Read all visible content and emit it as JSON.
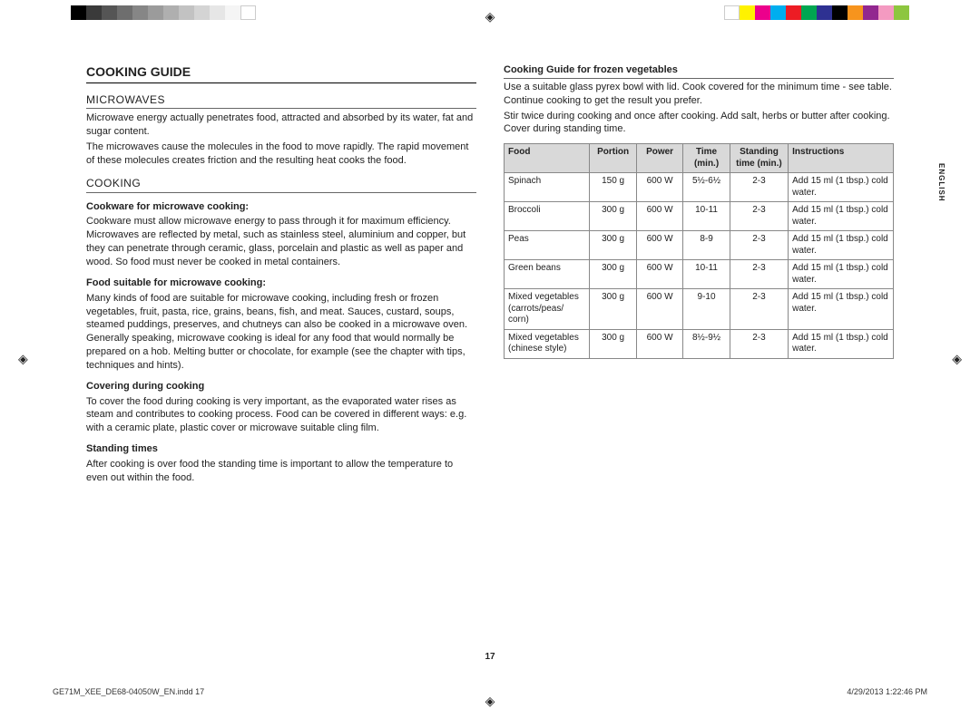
{
  "colorbars": {
    "left": [
      "#000000",
      "#3a3a3a",
      "#555555",
      "#6e6e6e",
      "#868686",
      "#9b9b9b",
      "#afafaf",
      "#c2c2c2",
      "#d4d4d4",
      "#e6e6e6",
      "#f5f5f5",
      "#ffffff"
    ],
    "right": [
      "#ffffff",
      "#fff200",
      "#ec008c",
      "#00aeef",
      "#ed1c24",
      "#00a651",
      "#2e3192",
      "#000000",
      "#f7941d",
      "#92278f",
      "#f49ac1",
      "#8dc63f"
    ]
  },
  "heading": "COOKING GUIDE",
  "section_microwaves": {
    "title": "MICROWAVES",
    "p1": "Microwave energy actually penetrates food, attracted and absorbed by its water, fat and sugar content.",
    "p2": "The microwaves cause the molecules in the food to move rapidly. The rapid movement of these molecules creates friction and the resulting heat cooks the food."
  },
  "section_cooking": {
    "title": "COOKING",
    "sub1": "Cookware for microwave cooking:",
    "sub1_text": "Cookware must allow microwave energy to pass through it for maximum efficiency. Microwaves are reflected by metal, such as stainless steel, aluminium and copper, but they can penetrate through ceramic, glass, porcelain and plastic as well as paper and wood. So food must never be cooked in metal containers.",
    "sub2": "Food suitable for microwave cooking:",
    "sub2_text": "Many kinds of food are suitable for microwave cooking, including fresh or frozen vegetables, fruit, pasta, rice, grains, beans, fish, and meat. Sauces, custard, soups, steamed puddings, preserves, and chutneys can also be cooked in a microwave oven. Generally speaking, microwave cooking is ideal for any food that would normally be prepared on a hob. Melting butter or chocolate, for example (see the chapter with tips, techniques and hints).",
    "sub3": "Covering during cooking",
    "sub3_text": "To cover the food during cooking is very important, as the evaporated water rises as steam and contributes to cooking process. Food can be covered in different ways: e.g. with a ceramic plate, plastic cover or microwave suitable cling film.",
    "sub4": "Standing times",
    "sub4_text": "After cooking is over food the standing time is important to allow the temperature to even out within the food."
  },
  "right": {
    "title": "Cooking Guide for frozen vegetables",
    "intro1": "Use a suitable glass pyrex bowl with lid. Cook covered for the minimum time - see table. Continue cooking to get the result you prefer.",
    "intro2": "Stir twice during cooking and once after cooking. Add salt, herbs or butter after cooking. Cover during standing time."
  },
  "table": {
    "headers": {
      "food": "Food",
      "portion": "Portion",
      "power": "Power",
      "time": "Time (min.)",
      "standing": "Standing time (min.)",
      "instructions": "Instructions"
    },
    "rows": [
      {
        "food": "Spinach",
        "portion": "150 g",
        "power": "600 W",
        "time": "5½-6½",
        "standing": "2-3",
        "instructions": "Add 15 ml (1 tbsp.) cold water."
      },
      {
        "food": "Broccoli",
        "portion": "300 g",
        "power": "600 W",
        "time": "10-11",
        "standing": "2-3",
        "instructions": "Add 15 ml (1 tbsp.) cold water."
      },
      {
        "food": "Peas",
        "portion": "300 g",
        "power": "600 W",
        "time": "8-9",
        "standing": "2-3",
        "instructions": "Add 15 ml (1 tbsp.) cold water."
      },
      {
        "food": "Green beans",
        "portion": "300 g",
        "power": "600 W",
        "time": "10-11",
        "standing": "2-3",
        "instructions": "Add 15 ml (1 tbsp.) cold water."
      },
      {
        "food": "Mixed vegetables (carrots/peas/ corn)",
        "portion": "300 g",
        "power": "600 W",
        "time": "9-10",
        "standing": "2-3",
        "instructions": "Add 15 ml (1 tbsp.) cold water."
      },
      {
        "food": "Mixed vegetables (chinese style)",
        "portion": "300 g",
        "power": "600 W",
        "time": "8½-9½",
        "standing": "2-3",
        "instructions": "Add 15 ml (1 tbsp.) cold water."
      }
    ],
    "col_widths": {
      "food": "22%",
      "portion": "12%",
      "power": "12%",
      "time": "12%",
      "standing": "15%",
      "instructions": "27%"
    },
    "header_bg": "#d9d9d9",
    "border_color": "#888888"
  },
  "lang_tab": "ENGLISH",
  "page_number": "17",
  "footer_left": "GE71M_XEE_DE68-04050W_EN.indd   17",
  "footer_right": "4/29/2013   1:22:46 PM"
}
